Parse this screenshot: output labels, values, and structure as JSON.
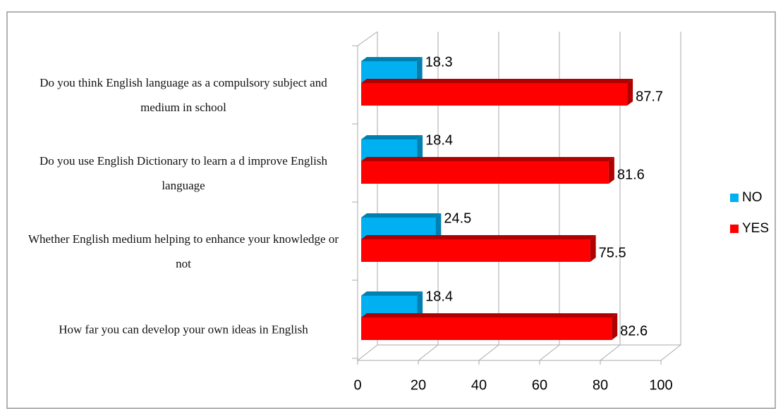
{
  "chart_data": {
    "type": "bar",
    "orientation": "horizontal",
    "three_d": true,
    "categories": [
      "Do you think English language as a compulsory subject and medium in school",
      "Do you use English Dictionary to learn a d improve English language",
      "Whether English medium helping to enhance your knowledge or not",
      "How far you can develop your own ideas in English"
    ],
    "series": [
      {
        "name": "NO",
        "color": "#00b0f0",
        "values": [
          18.3,
          18.4,
          24.5,
          18.4
        ]
      },
      {
        "name": "YES",
        "color": "#ff0000",
        "values": [
          87.7,
          81.6,
          75.5,
          82.6
        ]
      }
    ],
    "xlim": [
      0,
      100
    ],
    "xticks": [
      0,
      20,
      40,
      60,
      80,
      100
    ],
    "grid": true,
    "legend": "right"
  }
}
